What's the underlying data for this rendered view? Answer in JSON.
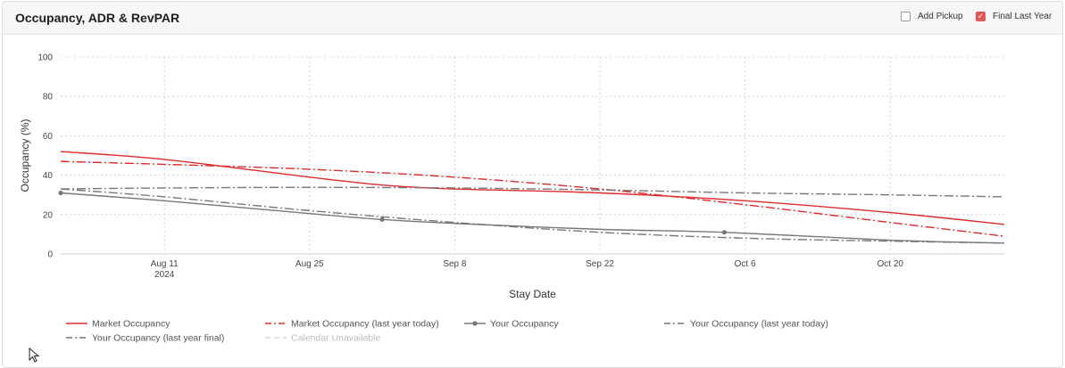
{
  "header": {
    "title": "Occupancy, ADR & RevPAR",
    "options": [
      {
        "label": "Add Pickup",
        "checked": false
      },
      {
        "label": "Final Last Year",
        "checked": true
      }
    ]
  },
  "colors": {
    "market": "#e02b2b",
    "yours": "#777777",
    "unavailable": "#d9d9d9",
    "checkbox_on": "#e45555"
  },
  "chart_data": {
    "type": "line",
    "xlabel": "Stay Date",
    "ylabel": "Occupancy (%)",
    "ylim": [
      0,
      100
    ],
    "yticks": [
      0,
      20,
      40,
      60,
      80,
      100
    ],
    "xlim": [
      "2024-08-01",
      "2024-10-31"
    ],
    "xticks": [
      {
        "date": "2024-08-11",
        "label": "Aug 11",
        "sub": "2024"
      },
      {
        "date": "2024-08-25",
        "label": "Aug 25",
        "sub": ""
      },
      {
        "date": "2024-09-08",
        "label": "Sep 8",
        "sub": ""
      },
      {
        "date": "2024-09-22",
        "label": "Sep 22",
        "sub": ""
      },
      {
        "date": "2024-10-06",
        "label": "Oct 6",
        "sub": ""
      },
      {
        "date": "2024-10-20",
        "label": "Oct 20",
        "sub": ""
      }
    ],
    "grid": true,
    "legend_position": "bottom",
    "series": [
      {
        "name": "Market Occupancy",
        "style": "solid",
        "color": "#e02b2b",
        "x": [
          "2024-08-01",
          "2024-08-11",
          "2024-08-25",
          "2024-09-01",
          "2024-09-08",
          "2024-09-22",
          "2024-10-06",
          "2024-10-20",
          "2024-10-31"
        ],
        "y": [
          52,
          48,
          39,
          35,
          33,
          31,
          27,
          21,
          15
        ]
      },
      {
        "name": "Market Occupancy (last year today)",
        "style": "dashdot",
        "color": "#e02b2b",
        "x": [
          "2024-08-01",
          "2024-08-11",
          "2024-08-25",
          "2024-09-08",
          "2024-09-22",
          "2024-10-06",
          "2024-10-20",
          "2024-10-31"
        ],
        "y": [
          47,
          45.5,
          43,
          39,
          33,
          25,
          16,
          9
        ]
      },
      {
        "name": "Your Occupancy",
        "style": "solid-marker",
        "color": "#777777",
        "x": [
          "2024-08-01",
          "2024-08-11",
          "2024-08-25",
          "2024-09-01",
          "2024-09-08",
          "2024-09-22",
          "2024-10-04",
          "2024-10-20",
          "2024-10-31"
        ],
        "y": [
          31,
          27,
          20.5,
          17.5,
          15.5,
          12.5,
          11,
          7,
          5.5
        ],
        "markers": [
          "2024-08-01",
          "2024-09-01",
          "2024-10-04"
        ]
      },
      {
        "name": "Your Occupancy (last year today)",
        "style": "dashdot",
        "color": "#777777",
        "x": [
          "2024-08-01",
          "2024-08-11",
          "2024-08-25",
          "2024-09-08",
          "2024-09-22",
          "2024-10-06",
          "2024-10-20",
          "2024-10-31"
        ],
        "y": [
          33,
          33.5,
          33.8,
          33.5,
          32.5,
          31,
          30,
          29
        ]
      },
      {
        "name": "Your Occupancy (last year final)",
        "style": "dashdot",
        "color": "#777777",
        "x": [
          "2024-08-01",
          "2024-08-11",
          "2024-08-25",
          "2024-09-08",
          "2024-09-22",
          "2024-10-06",
          "2024-10-20",
          "2024-10-31"
        ],
        "y": [
          33,
          29,
          22,
          16,
          11,
          8,
          6.5,
          5.5
        ]
      },
      {
        "name": "Calendar Unavailable",
        "style": "legend-only",
        "color": "#d9d9d9",
        "x": [],
        "y": []
      }
    ]
  }
}
